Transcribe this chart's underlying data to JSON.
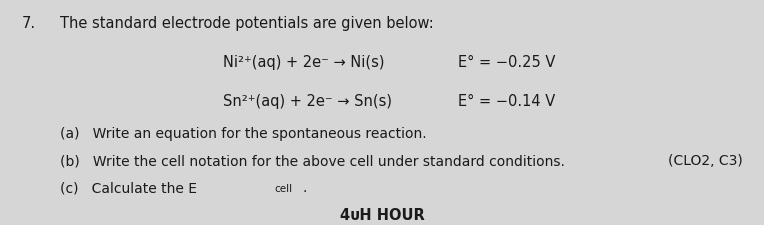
{
  "background_color": "#d6d6d6",
  "question_number": "7.",
  "intro_text": "The standard electrode potentials are given below:",
  "reaction1": "Ni²⁺(aq) + 2e⁻ → Ni(s)",
  "reaction2": "Sn²⁺(aq) + 2e⁻ → Sn(s)",
  "potential1": "E° = −0.25 V",
  "potential2": "E° = −0.14 V",
  "part_a": "(a)   Write an equation for the spontaneous reaction.",
  "part_b": "(b)   Write the cell notation for the above cell under standard conditions.",
  "part_c_prefix": "(c)   Calculate the E",
  "part_c_sub": "cell",
  "part_c_suffix": ".",
  "clo": "(CLO2, C3)",
  "hour_text": "4ᴜH HOUR",
  "text_color": "#1a1a1a",
  "font_size_main": 10.5,
  "font_size_small": 10.0
}
